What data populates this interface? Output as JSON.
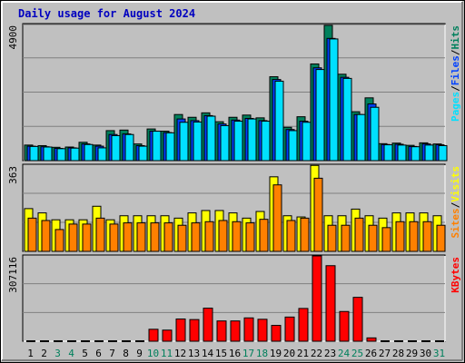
{
  "colors": {
    "background": "#c0c0c0",
    "title": "#0000c0",
    "hits": "#00805c",
    "files": "#0040ff",
    "pages": "#00e0ff",
    "visits": "#ffff00",
    "sites": "#ff8000",
    "kbytes": "#ff0000",
    "weekend_label": "#00805c",
    "weekday_label": "#000000",
    "separator": "#000000"
  },
  "chart_data": {
    "type": "bar",
    "title": "Daily usage for August 2024",
    "categories": [
      "1",
      "2",
      "3",
      "4",
      "5",
      "6",
      "7",
      "8",
      "9",
      "10",
      "11",
      "12",
      "13",
      "14",
      "15",
      "16",
      "17",
      "18",
      "19",
      "20",
      "21",
      "22",
      "23",
      "24",
      "25",
      "26",
      "27",
      "28",
      "29",
      "30",
      "31"
    ],
    "weekend_days": [
      "3",
      "4",
      "10",
      "11",
      "17",
      "18",
      "24",
      "25",
      "31"
    ],
    "panels": [
      {
        "name": "hits-files-pages",
        "axis_max_label": "4900",
        "ylim": [
          0,
          4900
        ],
        "right_label": [
          {
            "text": "Pages",
            "color_key": "pages"
          },
          {
            "text": "/",
            "color_key": "separator"
          },
          {
            "text": "Files",
            "color_key": "files"
          },
          {
            "text": "/",
            "color_key": "separator"
          },
          {
            "text": "Hits",
            "color_key": "hits"
          }
        ],
        "series": [
          {
            "key": "hits",
            "values": [
              560,
              540,
              480,
              490,
              660,
              560,
              1080,
              1100,
              600,
              1140,
              1060,
              1660,
              1560,
              1720,
              1400,
              1560,
              1640,
              1540,
              3020,
              1200,
              1580,
              3480,
              4870,
              3110,
              1760,
              2260,
              610,
              630,
              550,
              640,
              600
            ]
          },
          {
            "key": "files",
            "values": [
              520,
              500,
              440,
              460,
              600,
              520,
              940,
              960,
              540,
              1060,
              1010,
              1500,
              1440,
              1620,
              1320,
              1460,
              1520,
              1440,
              2920,
              1120,
              1420,
              3340,
              4400,
              3000,
              1660,
              2040,
              580,
              590,
              510,
              600,
              570
            ]
          },
          {
            "key": "pages",
            "values": [
              510,
              490,
              430,
              450,
              580,
              460,
              900,
              940,
              520,
              1060,
              1000,
              1380,
              1390,
              1600,
              1260,
              1420,
              1500,
              1420,
              2860,
              1080,
              1380,
              3280,
              4380,
              2960,
              1660,
              1920,
              570,
              560,
              500,
              560,
              540
            ]
          }
        ]
      },
      {
        "name": "visits-sites",
        "axis_max_label": "363",
        "ylim": [
          0,
          363
        ],
        "right_label": [
          {
            "text": "Sites",
            "color_key": "sites"
          },
          {
            "text": "/",
            "color_key": "separator"
          },
          {
            "text": "Visits",
            "color_key": "visits"
          }
        ],
        "series": [
          {
            "key": "visits",
            "values": [
              180,
              162,
              133,
              133,
              133,
              190,
              133,
              150,
              150,
              150,
              150,
              140,
              162,
              172,
              172,
              162,
              140,
              168,
              314,
              150,
              145,
              362,
              150,
              150,
              178,
              150,
              140,
              162,
              162,
              162,
              150
            ]
          },
          {
            "key": "sites",
            "values": [
              140,
              130,
              92,
              115,
              115,
              140,
              115,
              120,
              120,
              120,
              120,
              110,
              120,
              125,
              130,
              125,
              120,
              135,
              280,
              130,
              140,
              308,
              110,
              110,
              140,
              110,
              100,
              125,
              125,
              125,
              110
            ]
          }
        ]
      },
      {
        "name": "kbytes",
        "axis_max_label": "307116",
        "ylim": [
          0,
          307116
        ],
        "right_label": [
          {
            "text": "KBytes",
            "color_key": "kbytes"
          }
        ],
        "series": [
          {
            "key": "kbytes",
            "values": [
              0,
              0,
              0,
              0,
              0,
              0,
              0,
              0,
              0,
              43000,
              40000,
              80000,
              78000,
              119000,
              73000,
              73000,
              84000,
              79000,
              57000,
              87000,
              118000,
              307116,
              272000,
              107000,
              158000,
              12000,
              0,
              0,
              0,
              0,
              0
            ]
          }
        ]
      }
    ]
  }
}
